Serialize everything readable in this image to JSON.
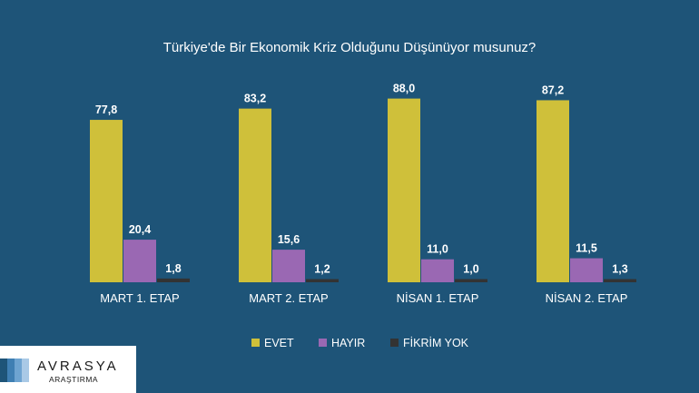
{
  "chart_data": {
    "type": "bar",
    "title": "Türkiye'de Bir Ekonomik Kriz Olduğunu Düşünüyor musunuz?",
    "categories": [
      "MART 1. ETAP",
      "MART 2. ETAP",
      "NİSAN 1. ETAP",
      "NİSAN 2. ETAP"
    ],
    "series": [
      {
        "name": "EVET",
        "color": "#cfc03a",
        "values": [
          77.8,
          83.2,
          88.0,
          87.2
        ],
        "labels": [
          "77,8",
          "83,2",
          "88,0",
          "87,2"
        ]
      },
      {
        "name": "HAYIR",
        "color": "#9a68b3",
        "values": [
          20.4,
          15.6,
          11.0,
          11.5
        ],
        "labels": [
          "20,4",
          "15,6",
          "11,0",
          "11,5"
        ]
      },
      {
        "name": "FİKRİM YOK",
        "color": "#333333",
        "values": [
          1.8,
          1.2,
          1.0,
          1.3
        ],
        "labels": [
          "1,8",
          "1,2",
          "1,0",
          "1,3"
        ]
      }
    ],
    "ylim": [
      0,
      100
    ],
    "grid": false,
    "legend_position": "bottom-center"
  },
  "brand": {
    "name": "AVRASYA",
    "subtitle": "ARAŞTIRMA",
    "stripe_colors": [
      "#1e5478",
      "#3f7fb3",
      "#6ea4d1",
      "#a9c9e6"
    ]
  }
}
